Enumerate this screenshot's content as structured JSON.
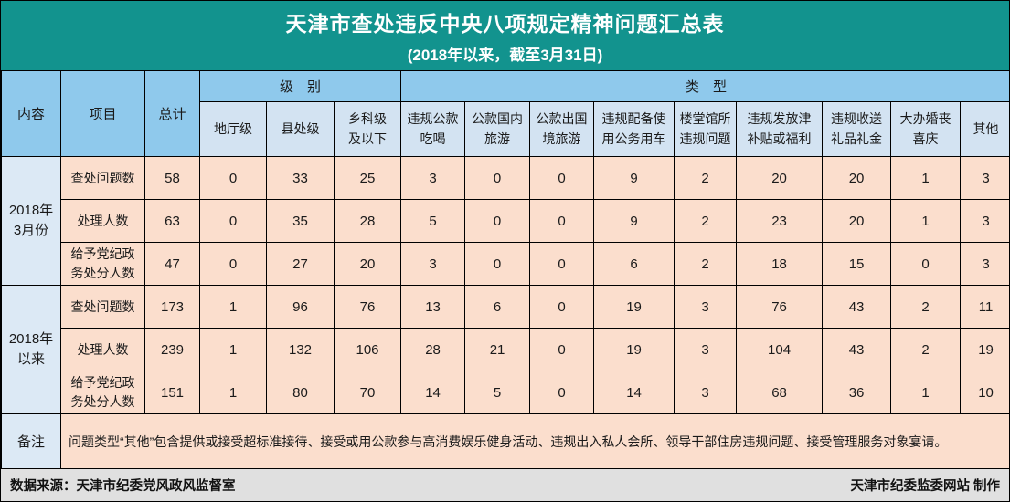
{
  "title": {
    "main": "天津市查处违反中央八项规定精神问题汇总表",
    "subtitle": "(2018年以来，截至3月31日)"
  },
  "colors": {
    "title_bg": "#12938E",
    "header_blue": "#8FC9EC",
    "subheader_blue": "#D3E3F2",
    "label_blue": "#DCE9F5",
    "cell_peach": "#FBDECD",
    "footer_gray": "#E0E0E0",
    "border": "#000000"
  },
  "table": {
    "corner": {
      "content": "内容",
      "item": "项目",
      "total": "总计"
    },
    "groups": [
      {
        "label": "级　别",
        "span": 3
      },
      {
        "label": "类　型",
        "span": 9
      }
    ],
    "subcolumns": [
      "地厅级",
      "县处级",
      "乡科级\n及以下",
      "违规公款\n吃喝",
      "公款国内\n旅游",
      "公款出国\n境旅游",
      "违规配备使\n用公务用车",
      "楼堂馆所\n违规问题",
      "违规发放津\n补贴或福利",
      "违规收送\n礼品礼金",
      "大办婚丧\n喜庆",
      "其他"
    ],
    "row_groups": [
      {
        "label": "2018年\n3月份",
        "rows": [
          {
            "label": "查处问题数",
            "total": 58,
            "values": [
              0,
              33,
              25,
              3,
              0,
              0,
              9,
              2,
              20,
              20,
              1,
              3
            ]
          },
          {
            "label": "处理人数",
            "total": 63,
            "values": [
              0,
              35,
              28,
              5,
              0,
              0,
              9,
              2,
              23,
              20,
              1,
              3
            ]
          },
          {
            "label": "给予党纪政\n务处分人数",
            "total": 47,
            "values": [
              0,
              27,
              20,
              3,
              0,
              0,
              6,
              2,
              18,
              15,
              0,
              3
            ]
          }
        ]
      },
      {
        "label": "2018年\n以来",
        "rows": [
          {
            "label": "查处问题数",
            "total": 173,
            "values": [
              1,
              96,
              76,
              13,
              6,
              0,
              19,
              3,
              76,
              43,
              2,
              11
            ]
          },
          {
            "label": "处理人数",
            "total": 239,
            "values": [
              1,
              132,
              106,
              28,
              21,
              0,
              19,
              3,
              104,
              43,
              2,
              19
            ]
          },
          {
            "label": "给予党纪政\n务处分人数",
            "total": 151,
            "values": [
              1,
              80,
              70,
              14,
              5,
              0,
              14,
              3,
              68,
              36,
              1,
              10
            ]
          }
        ]
      }
    ],
    "note": {
      "label": "备注",
      "text": "问题类型“其他”包含提供或接受超标准接待、接受或用公款参与高消费娱乐健身活动、违规出入私人会所、领导干部住房违规问题、接受管理服务对象宴请。"
    }
  },
  "footer": {
    "source": "数据来源：天津市纪委党风政风监督室",
    "credit": "天津市纪委监委网站 制作"
  }
}
